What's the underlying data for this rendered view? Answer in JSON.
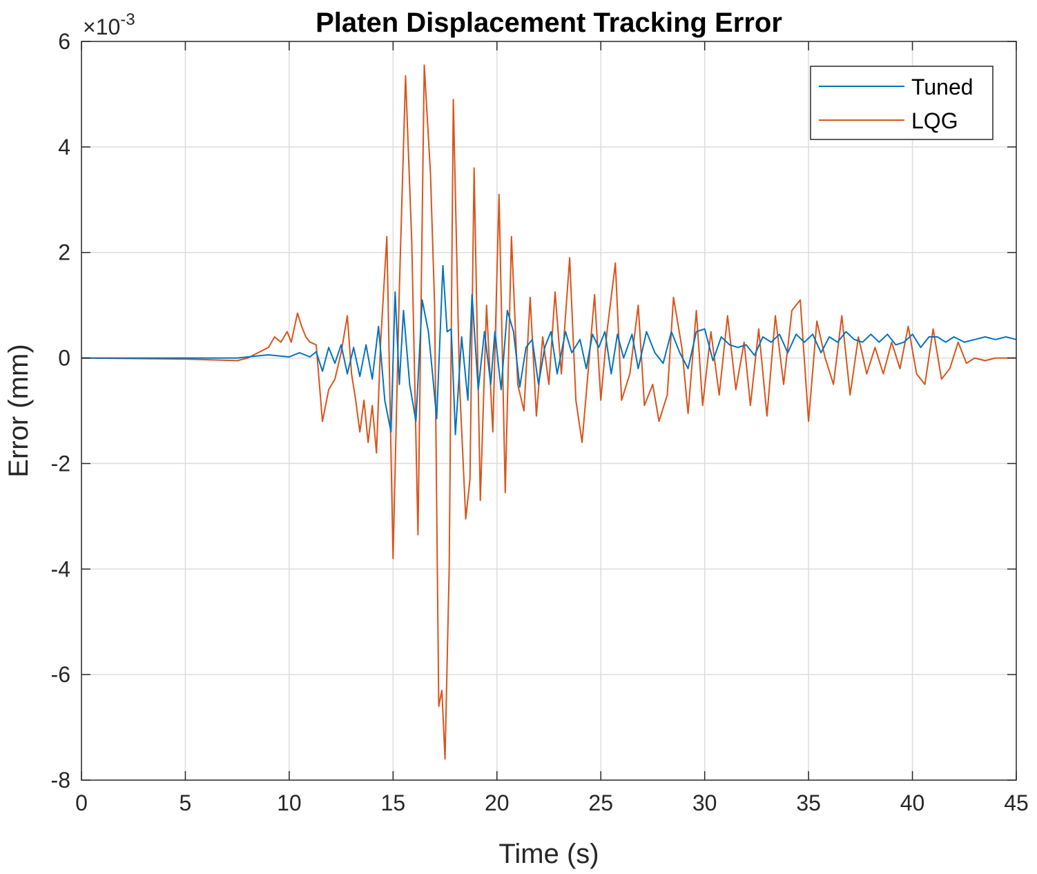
{
  "chart_data": {
    "type": "line",
    "title": "Platen Displacement Tracking Error",
    "xlabel": "Time (s)",
    "ylabel": "Error (mm)",
    "y_exponent_label": "×10",
    "y_exponent_power": "-3",
    "xlim": [
      0,
      45
    ],
    "ylim": [
      -8,
      6
    ],
    "xticks": [
      0,
      5,
      10,
      15,
      20,
      25,
      30,
      35,
      40,
      45
    ],
    "yticks": [
      -8,
      -6,
      -4,
      -2,
      0,
      2,
      4,
      6
    ],
    "xtick_labels": [
      "0",
      "5",
      "10",
      "15",
      "20",
      "25",
      "30",
      "35",
      "40",
      "45"
    ],
    "ytick_labels": [
      "-8",
      "-6",
      "-4",
      "-2",
      "0",
      "2",
      "4",
      "6"
    ],
    "grid": true,
    "legend_position": "top-right",
    "series": [
      {
        "name": "Tuned",
        "color": "#0072BD",
        "points": [
          [
            0,
            0
          ],
          [
            7.5,
            0
          ],
          [
            8,
            0.02
          ],
          [
            8.5,
            0.04
          ],
          [
            9,
            0.06
          ],
          [
            9.5,
            0.04
          ],
          [
            10,
            0.02
          ],
          [
            10.5,
            0.1
          ],
          [
            11,
            0.02
          ],
          [
            11.3,
            0.12
          ],
          [
            11.6,
            -0.25
          ],
          [
            11.9,
            0.2
          ],
          [
            12.2,
            -0.1
          ],
          [
            12.5,
            0.25
          ],
          [
            12.8,
            -0.3
          ],
          [
            13.1,
            0.2
          ],
          [
            13.4,
            -0.35
          ],
          [
            13.7,
            0.25
          ],
          [
            14,
            -0.4
          ],
          [
            14.3,
            0.6
          ],
          [
            14.6,
            -0.8
          ],
          [
            14.9,
            -1.4
          ],
          [
            15.1,
            1.25
          ],
          [
            15.3,
            -0.5
          ],
          [
            15.5,
            0.9
          ],
          [
            15.8,
            -0.5
          ],
          [
            16.1,
            -1.2
          ],
          [
            16.4,
            1.1
          ],
          [
            16.7,
            0.5
          ],
          [
            16.9,
            -0.3
          ],
          [
            17.1,
            -1.15
          ],
          [
            17.4,
            1.75
          ],
          [
            17.6,
            0.5
          ],
          [
            17.8,
            0.55
          ],
          [
            18,
            -1.45
          ],
          [
            18.3,
            0.4
          ],
          [
            18.6,
            -0.8
          ],
          [
            18.8,
            1.2
          ],
          [
            19.1,
            -0.6
          ],
          [
            19.4,
            0.5
          ],
          [
            19.7,
            -0.5
          ],
          [
            19.9,
            0.5
          ],
          [
            20.2,
            -0.6
          ],
          [
            20.5,
            0.9
          ],
          [
            20.8,
            0.5
          ],
          [
            21.1,
            -0.55
          ],
          [
            21.4,
            0.2
          ],
          [
            21.7,
            0.35
          ],
          [
            22,
            -0.5
          ],
          [
            22.3,
            0.2
          ],
          [
            22.6,
            0.5
          ],
          [
            22.9,
            -0.3
          ],
          [
            23.3,
            0.5
          ],
          [
            23.6,
            0.1
          ],
          [
            24,
            0.35
          ],
          [
            24.3,
            -0.2
          ],
          [
            24.6,
            0.45
          ],
          [
            24.9,
            0.2
          ],
          [
            25.2,
            0.5
          ],
          [
            25.5,
            -0.3
          ],
          [
            25.8,
            0.45
          ],
          [
            26.1,
            0.0
          ],
          [
            26.5,
            0.45
          ],
          [
            26.8,
            -0.2
          ],
          [
            27.2,
            0.5
          ],
          [
            27.6,
            0.1
          ],
          [
            28,
            -0.1
          ],
          [
            28.4,
            0.5
          ],
          [
            28.8,
            0.1
          ],
          [
            29.2,
            -0.2
          ],
          [
            29.6,
            0.5
          ],
          [
            30,
            0.55
          ],
          [
            30.4,
            -0.05
          ],
          [
            30.8,
            0.4
          ],
          [
            31.2,
            0.25
          ],
          [
            31.6,
            0.2
          ],
          [
            32,
            0.25
          ],
          [
            32.4,
            0.05
          ],
          [
            32.8,
            0.4
          ],
          [
            33.2,
            0.3
          ],
          [
            33.6,
            0.45
          ],
          [
            34,
            0.1
          ],
          [
            34.4,
            0.45
          ],
          [
            34.8,
            0.3
          ],
          [
            35.2,
            0.45
          ],
          [
            35.6,
            0.1
          ],
          [
            36,
            0.4
          ],
          [
            36.4,
            0.3
          ],
          [
            36.8,
            0.5
          ],
          [
            37.2,
            0.35
          ],
          [
            37.6,
            0.3
          ],
          [
            38,
            0.45
          ],
          [
            38.4,
            0.3
          ],
          [
            38.8,
            0.45
          ],
          [
            39.2,
            0.25
          ],
          [
            39.6,
            0.3
          ],
          [
            40,
            0.45
          ],
          [
            40.4,
            0.2
          ],
          [
            40.8,
            0.4
          ],
          [
            41.2,
            0.4
          ],
          [
            41.6,
            0.3
          ],
          [
            42,
            0.4
          ],
          [
            42.5,
            0.3
          ],
          [
            43,
            0.35
          ],
          [
            43.5,
            0.4
          ],
          [
            44,
            0.35
          ],
          [
            44.5,
            0.4
          ],
          [
            45,
            0.35
          ]
        ]
      },
      {
        "name": "LQG",
        "color": "#D95319",
        "points": [
          [
            0,
            0
          ],
          [
            5,
            -0.02
          ],
          [
            7.5,
            -0.05
          ],
          [
            8,
            0.0
          ],
          [
            8.5,
            0.1
          ],
          [
            9,
            0.2
          ],
          [
            9.3,
            0.4
          ],
          [
            9.6,
            0.3
          ],
          [
            9.9,
            0.5
          ],
          [
            10.1,
            0.3
          ],
          [
            10.4,
            0.85
          ],
          [
            10.6,
            0.6
          ],
          [
            10.8,
            0.4
          ],
          [
            11,
            0.3
          ],
          [
            11.3,
            0.25
          ],
          [
            11.6,
            -1.2
          ],
          [
            11.9,
            -0.6
          ],
          [
            12.2,
            -0.4
          ],
          [
            12.5,
            0.1
          ],
          [
            12.8,
            0.8
          ],
          [
            13.0,
            -0.3
          ],
          [
            13.2,
            -0.8
          ],
          [
            13.4,
            -1.4
          ],
          [
            13.6,
            -0.8
          ],
          [
            13.8,
            -1.6
          ],
          [
            14.0,
            -0.9
          ],
          [
            14.2,
            -1.8
          ],
          [
            14.4,
            0.3
          ],
          [
            14.7,
            2.3
          ],
          [
            15.0,
            -3.8
          ],
          [
            15.3,
            1.3
          ],
          [
            15.6,
            5.35
          ],
          [
            15.9,
            2.2
          ],
          [
            16.2,
            -3.35
          ],
          [
            16.5,
            5.55
          ],
          [
            16.8,
            3.5
          ],
          [
            17.0,
            1.0
          ],
          [
            17.2,
            -6.6
          ],
          [
            17.35,
            -6.3
          ],
          [
            17.5,
            -7.6
          ],
          [
            17.7,
            -4.0
          ],
          [
            17.9,
            4.9
          ],
          [
            18.2,
            -0.5
          ],
          [
            18.5,
            -3.05
          ],
          [
            18.7,
            -2.3
          ],
          [
            18.9,
            3.6
          ],
          [
            19.2,
            -2.7
          ],
          [
            19.5,
            1.0
          ],
          [
            19.8,
            -1.4
          ],
          [
            20.1,
            3.1
          ],
          [
            20.4,
            -2.55
          ],
          [
            20.7,
            2.3
          ],
          [
            21.0,
            -0.5
          ],
          [
            21.3,
            -1.0
          ],
          [
            21.6,
            1.15
          ],
          [
            21.9,
            -1.1
          ],
          [
            22.2,
            0.4
          ],
          [
            22.5,
            -0.5
          ],
          [
            22.8,
            1.25
          ],
          [
            23.1,
            -0.3
          ],
          [
            23.5,
            1.9
          ],
          [
            23.8,
            -0.8
          ],
          [
            24.1,
            -1.6
          ],
          [
            24.4,
            -0.2
          ],
          [
            24.7,
            1.2
          ],
          [
            25.0,
            -0.8
          ],
          [
            25.3,
            0.5
          ],
          [
            25.7,
            1.8
          ],
          [
            26.0,
            -0.8
          ],
          [
            26.4,
            -0.3
          ],
          [
            26.8,
            1.0
          ],
          [
            27.1,
            -0.9
          ],
          [
            27.5,
            -0.5
          ],
          [
            27.8,
            -1.2
          ],
          [
            28.2,
            -0.7
          ],
          [
            28.5,
            1.15
          ],
          [
            28.9,
            0.2
          ],
          [
            29.2,
            -1.05
          ],
          [
            29.6,
            0.9
          ],
          [
            29.9,
            -0.9
          ],
          [
            30.3,
            0.5
          ],
          [
            30.7,
            -0.7
          ],
          [
            31.1,
            0.8
          ],
          [
            31.5,
            -0.6
          ],
          [
            31.9,
            0.3
          ],
          [
            32.2,
            -0.9
          ],
          [
            32.6,
            0.55
          ],
          [
            33.0,
            -1.1
          ],
          [
            33.4,
            0.8
          ],
          [
            33.8,
            -0.5
          ],
          [
            34.2,
            0.9
          ],
          [
            34.6,
            1.1
          ],
          [
            35.0,
            -1.2
          ],
          [
            35.4,
            0.7
          ],
          [
            35.8,
            0.0
          ],
          [
            36.2,
            -0.5
          ],
          [
            36.6,
            0.8
          ],
          [
            37.0,
            -0.7
          ],
          [
            37.4,
            0.4
          ],
          [
            37.8,
            -0.3
          ],
          [
            38.2,
            0.2
          ],
          [
            38.6,
            -0.3
          ],
          [
            39.0,
            0.3
          ],
          [
            39.4,
            -0.2
          ],
          [
            39.8,
            0.6
          ],
          [
            40.2,
            -0.3
          ],
          [
            40.6,
            -0.5
          ],
          [
            41.0,
            0.55
          ],
          [
            41.4,
            -0.4
          ],
          [
            41.8,
            -0.2
          ],
          [
            42.2,
            0.3
          ],
          [
            42.6,
            -0.1
          ],
          [
            43.0,
            0.0
          ],
          [
            43.5,
            -0.05
          ],
          [
            44,
            0.0
          ],
          [
            44.5,
            0.0
          ],
          [
            45,
            0.0
          ]
        ]
      }
    ]
  }
}
